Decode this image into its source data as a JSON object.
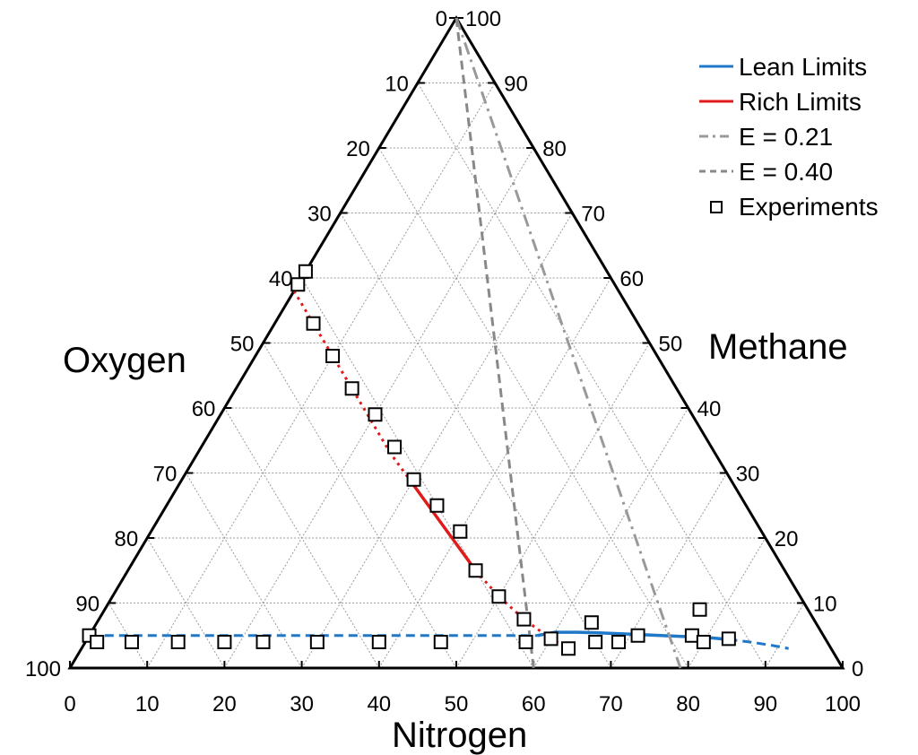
{
  "chart_data": {
    "type": "scatter",
    "plot": "ternary",
    "axes": {
      "nitrogen": {
        "label": "Nitrogen",
        "range": [
          0,
          100
        ],
        "ticks": [
          "0",
          "10",
          "20",
          "30",
          "40",
          "50",
          "60",
          "70",
          "80",
          "90",
          "100"
        ]
      },
      "oxygen": {
        "label": "Oxygen",
        "range": [
          0,
          100
        ],
        "ticks": [
          "0",
          "10",
          "20",
          "30",
          "40",
          "50",
          "60",
          "70",
          "80",
          "90",
          "100"
        ]
      },
      "methane": {
        "label": "Methane",
        "range": [
          0,
          100
        ],
        "ticks": [
          "0",
          "10",
          "20",
          "30",
          "40",
          "50",
          "60",
          "70",
          "80",
          "90",
          "100"
        ]
      }
    },
    "grid": true,
    "legend": {
      "position": "top-right",
      "entries": [
        {
          "label": "Lean Limits",
          "color": "#1f78c8",
          "style": "solid"
        },
        {
          "label": "Rich Limits",
          "color": "#e01b1b",
          "style": "solid"
        },
        {
          "label": "E = 0.21",
          "color": "#999999",
          "style": "dashdot"
        },
        {
          "label": "E = 0.40",
          "color": "#888888",
          "style": "dash"
        },
        {
          "label": "Experiments",
          "color": "#000000",
          "style": "square-marker"
        }
      ]
    },
    "series": [
      {
        "name": "Lean Limits",
        "color": "#1f78c8",
        "points": [
          [
            2,
            5
          ],
          [
            10,
            5
          ],
          [
            20,
            5
          ],
          [
            30,
            5
          ],
          [
            40,
            5
          ],
          [
            50,
            5
          ],
          [
            58,
            5
          ],
          [
            60,
            5.5
          ],
          [
            63,
            5.5
          ],
          [
            66,
            5.4
          ],
          [
            70,
            5.2
          ],
          [
            74,
            5.0
          ],
          [
            78,
            4.8
          ],
          [
            80,
            4.7
          ],
          [
            83,
            4.4
          ],
          [
            86,
            4.0
          ],
          [
            89,
            3.5
          ],
          [
            91.5,
            3.0
          ]
        ],
        "solid_range": [
          58,
          83
        ]
      },
      {
        "name": "Rich Limits",
        "color": "#e01b1b",
        "points": [
          [
            0,
            58
          ],
          [
            5,
            53
          ],
          [
            10,
            48
          ],
          [
            15,
            43
          ],
          [
            20,
            38
          ],
          [
            25,
            33
          ],
          [
            30,
            28.5
          ],
          [
            35,
            24
          ],
          [
            40,
            19.5
          ],
          [
            45,
            15
          ],
          [
            50,
            11
          ],
          [
            55,
            7.5
          ],
          [
            60,
            4.5
          ],
          [
            63,
            3
          ]
        ],
        "solid_range": [
          30,
          45
        ]
      },
      {
        "name": "E = 0.21",
        "color": "#999999",
        "points": [
          [
            0,
            100
          ],
          [
            79,
            0
          ]
        ]
      },
      {
        "name": "E = 0.40",
        "color": "#888888",
        "points": [
          [
            0,
            100
          ],
          [
            60,
            0
          ]
        ]
      },
      {
        "name": "Experiments",
        "marker": "square",
        "points": [
          [
            0,
            61
          ],
          [
            0,
            59
          ],
          [
            5,
            53
          ],
          [
            10,
            48
          ],
          [
            15,
            43
          ],
          [
            20,
            39
          ],
          [
            25,
            34
          ],
          [
            30,
            29
          ],
          [
            35,
            25
          ],
          [
            40,
            21
          ],
          [
            45,
            15
          ],
          [
            50,
            11
          ],
          [
            55,
            7.5
          ],
          [
            60,
            4.5
          ],
          [
            63,
            3
          ],
          [
            64,
            7
          ],
          [
            66,
            4
          ],
          [
            71,
            5
          ],
          [
            0,
            5
          ],
          [
            1.5,
            4
          ],
          [
            6,
            4
          ],
          [
            12,
            4
          ],
          [
            18,
            4
          ],
          [
            23,
            4
          ],
          [
            30,
            4
          ],
          [
            38,
            4
          ],
          [
            46,
            4
          ],
          [
            57,
            4
          ],
          [
            69,
            4
          ],
          [
            78,
            5
          ],
          [
            80,
            4
          ],
          [
            83,
            4.5
          ],
          [
            77,
            9
          ]
        ]
      }
    ]
  }
}
